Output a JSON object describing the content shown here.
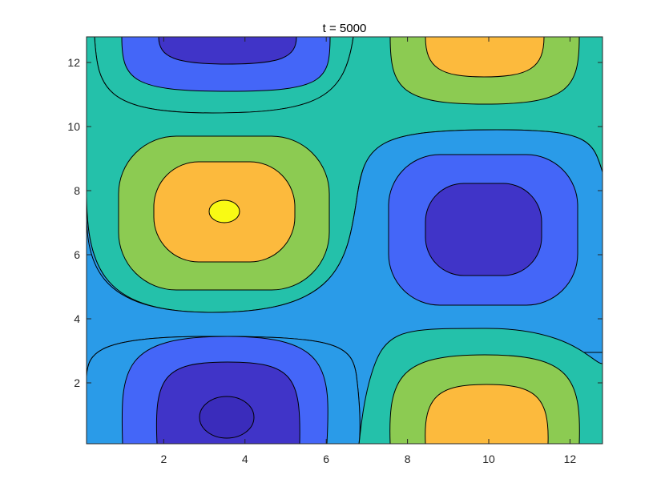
{
  "chart_data": {
    "type": "contour",
    "title": "t = 5000",
    "xlabel": "",
    "ylabel": "",
    "xlim": [
      0.1,
      12.8
    ],
    "ylim": [
      0.1,
      12.8
    ],
    "x_ticks": [
      2,
      4,
      6,
      8,
      10,
      12
    ],
    "y_ticks": [
      2,
      4,
      6,
      8,
      10,
      12
    ],
    "grid": false,
    "colormap": "parula",
    "fill_levels": [
      {
        "level": 1,
        "color": "#3A2CBB"
      },
      {
        "level": 2,
        "color": "#4034C8"
      },
      {
        "level": 3,
        "color": "#4466F8"
      },
      {
        "level": 4,
        "color": "#2A9BE8"
      },
      {
        "level": 5,
        "color": "#24C1AA"
      },
      {
        "level": 6,
        "color": "#8CCB52"
      },
      {
        "level": 7,
        "color": "#FCBA3D"
      },
      {
        "level": 8,
        "color": "#F9FA14"
      }
    ],
    "extrema": [
      {
        "type": "max",
        "x": 3.5,
        "y": 7.4
      },
      {
        "type": "min",
        "x": 9.9,
        "y": 6.8
      },
      {
        "type": "min",
        "x": 3.5,
        "y": 0.9
      },
      {
        "type": "min",
        "x": 3.5,
        "y": 13.7
      },
      {
        "type": "max",
        "x": 9.9,
        "y": 0.3
      },
      {
        "type": "max",
        "x": 9.9,
        "y": 13.1
      }
    ]
  }
}
